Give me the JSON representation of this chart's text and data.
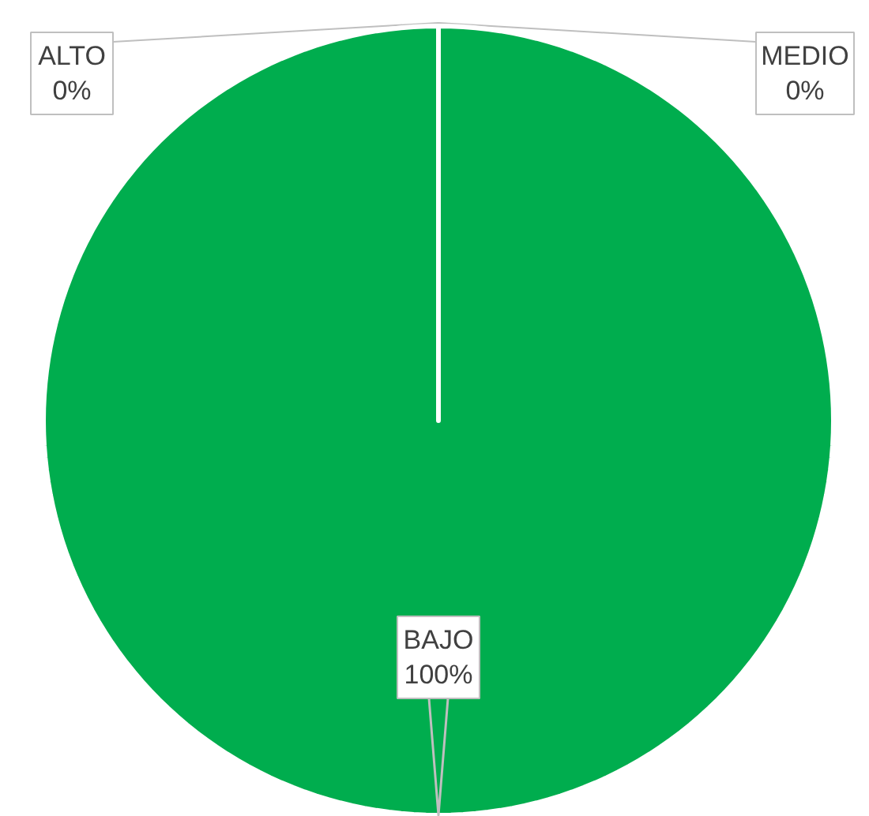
{
  "chart_data": {
    "type": "pie",
    "categories": [
      "ALTO",
      "MEDIO",
      "BAJO"
    ],
    "values": [
      0,
      0,
      100
    ],
    "colors": [
      null,
      null,
      "#00ad4e"
    ],
    "value_labels": [
      "0%",
      "0%",
      "100%"
    ]
  }
}
